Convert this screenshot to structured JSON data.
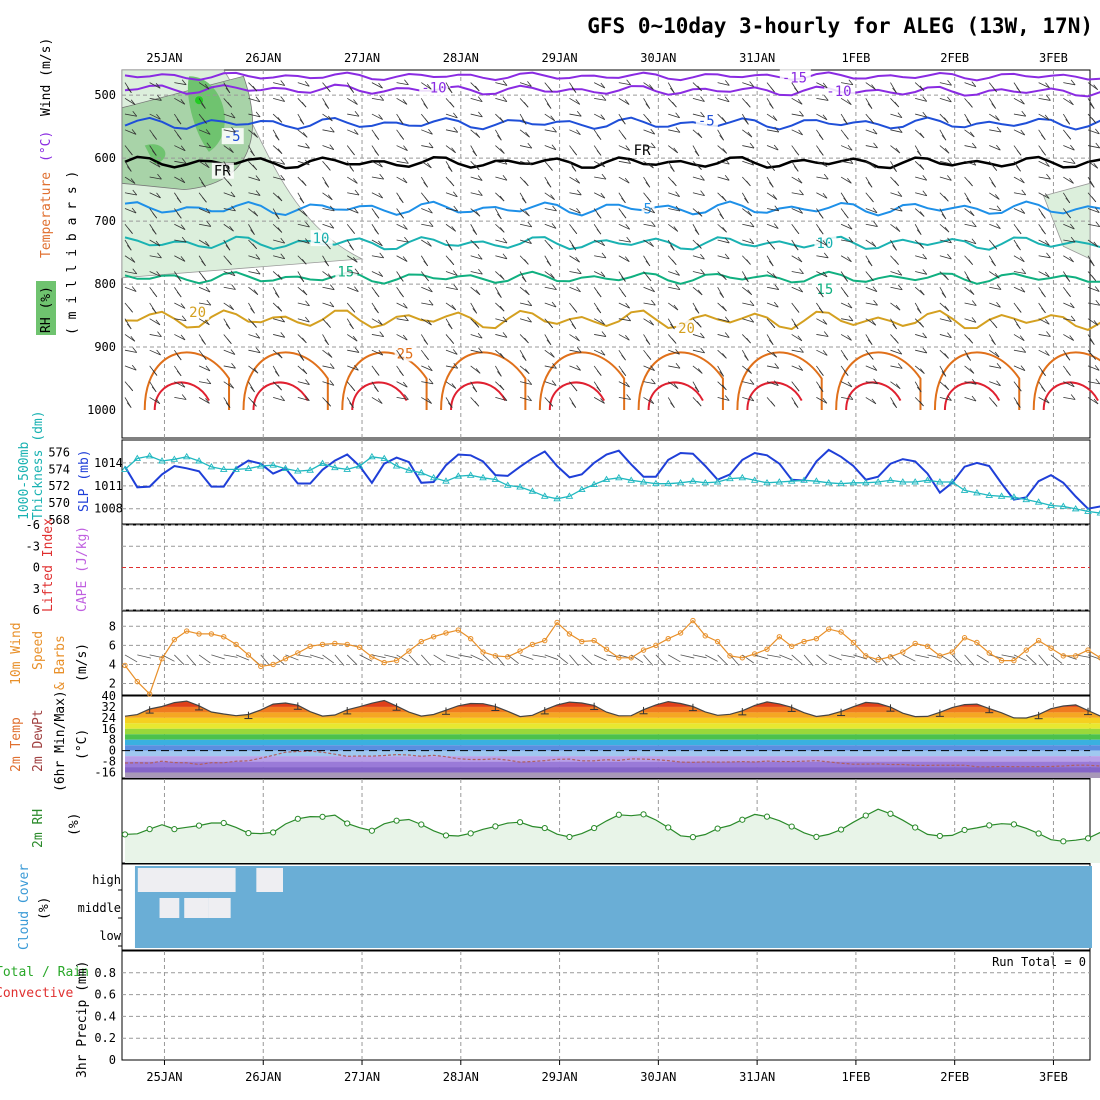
{
  "page": {
    "title": "GFS 0~10day 3-hourly for ALEG (13W, 17N)"
  },
  "colors": {
    "wind_barb": "#333333",
    "temp_cold": "#8a2be2",
    "temp_minus5": "#1f4fd8",
    "freezing": "#000000",
    "temp_5": "#1e90e8",
    "temp_10": "#1ab2b2",
    "temp_15": "#10b080",
    "temp_20": "#d4a020",
    "temp_25": "#e0701a",
    "temp_30": "#e02030",
    "rh_fill": "#6fc36f",
    "slp": "#1f3fd8",
    "thickness": "#20b8c0",
    "lifted_index": "#e03030",
    "cape": "#c060e0",
    "wind_speed": "#e8902a",
    "rh2m": "#2a8a2a",
    "cloud": "#6aaed6",
    "cloud_clear": "#eeeef2",
    "grid": "#999999"
  },
  "chart_data": {
    "x_axis": {
      "type": "date",
      "ticks": [
        "25JAN",
        "26JAN",
        "27JAN",
        "28JAN",
        "29JAN",
        "30JAN",
        "31JAN",
        "1FEB",
        "2FEB",
        "3FEB"
      ],
      "range_days": [
        -0.43,
        9.37
      ],
      "step_hours": 3
    },
    "charts": [
      {
        "id": "upper_air",
        "type": "contour",
        "ylabel_parts": [
          "RH (%)",
          "Temperature",
          " (°C)",
          "Wind",
          " (m/s)"
        ],
        "ylabel2": "( m i l l i b a r s )",
        "y_ticks": [
          "500",
          "600",
          "700",
          "800",
          "900",
          "1000"
        ],
        "ylim": [
          1000,
          460
        ],
        "contour_labels": [
          {
            "text": "-15",
            "t": 6.25,
            "p": 472
          },
          {
            "text": "-10",
            "t": 2.6,
            "p": 488
          },
          {
            "text": "-10",
            "t": 6.7,
            "p": 493
          },
          {
            "text": "-5",
            "t": 0.6,
            "p": 565
          },
          {
            "text": "-5",
            "t": 5.4,
            "p": 540
          },
          {
            "text": "FR",
            "t": 0.5,
            "p": 620
          },
          {
            "text": "FR",
            "t": 4.75,
            "p": 587
          },
          {
            "text": "5",
            "t": 4.85,
            "p": 680
          },
          {
            "text": "10",
            "t": 1.5,
            "p": 727
          },
          {
            "text": "10",
            "t": 6.6,
            "p": 735
          },
          {
            "text": "15",
            "t": 1.75,
            "p": 780
          },
          {
            "text": "15",
            "t": 6.6,
            "p": 808
          },
          {
            "text": "20",
            "t": 0.25,
            "p": 844
          },
          {
            "text": "20",
            "t": 5.2,
            "p": 870
          },
          {
            "text": "25",
            "t": 2.35,
            "p": 910
          }
        ],
        "temperature_levels_c": [
          -15,
          -10,
          -5,
          0,
          5,
          10,
          15,
          20,
          25,
          30
        ]
      },
      {
        "id": "slp_thickness",
        "type": "line",
        "ylabel_left": [
          "1000-500mb",
          "Thickness (dm)"
        ],
        "ylabel_right": "SLP (mb)",
        "y_ticks_left": [
          "576",
          "574",
          "572",
          "570",
          "568"
        ],
        "y_ticks_right": [
          "1014",
          "1011",
          "1008"
        ],
        "ylim_thickness": [
          567.5,
          577.5
        ],
        "ylim_slp": [
          1006,
          1017
        ],
        "series": [
          {
            "name": "SLP",
            "values": [
              1013.5,
              1010.8,
              1010.9,
              1012.5,
              1013.6,
              1013.3,
              1012.9,
              1010.9,
              1010.9,
              1013.3,
              1014.3,
              1013.9,
              1012.6,
              1013.3,
              1011.3,
              1011.3,
              1013.1,
              1014.3,
              1015.1,
              1013.6,
              1011.4,
              1013.9,
              1014.7,
              1014.1,
              1011.4,
              1011.5,
              1013.7,
              1015.1,
              1015.0,
              1014.2,
              1012.4,
              1012.3,
              1013.5,
              1014.6,
              1015.5,
              1013.6,
              1012.1,
              1012.5,
              1014.0,
              1015.1,
              1015.6,
              1013.8,
              1012.2,
              1012.2,
              1014.4,
              1015.3,
              1015.2,
              1013.6,
              1011.8,
              1012.5,
              1014.4,
              1015.3,
              1015.0,
              1013.9,
              1011.8,
              1011.7,
              1014.2,
              1015.7,
              1014.8,
              1013.6,
              1011.8,
              1012.2,
              1013.9,
              1014.5,
              1014.2,
              1012.6,
              1010.1,
              1011.4,
              1013.5,
              1014.0,
              1013.6,
              1011.3,
              1009.2,
              1009.5,
              1011.6,
              1012.4,
              1011.4,
              1009.6,
              1008.0,
              1008.3,
              1010.5,
              1011.4,
              1010.6,
              1008.6,
              1007.2,
              1007.6,
              1009.7,
              1010.2,
              1009.2,
              1007.7,
              1007.1,
              1008.1
            ]
          },
          {
            "name": "Thickness",
            "values": [
              574.0,
              575.3,
              575.6,
              575.0,
              575.2,
              575.5,
              575.0,
              574.3,
              574.0,
              574.0,
              574.1,
              574.4,
              574.5,
              574.1,
              573.8,
              573.9,
              574.7,
              574.2,
              574.0,
              574.4,
              575.5,
              575.3,
              574.4,
              573.9,
              573.6,
              573.0,
              572.6,
              573.2,
              573.3,
              573.0,
              572.8,
              572.1,
              571.9,
              571.4,
              570.8,
              570.5,
              570.8,
              571.6,
              572.2,
              572.8,
              573.0,
              572.7,
              572.5,
              572.3,
              572.3,
              572.4,
              572.6,
              572.4,
              572.5,
              572.9,
              573.0,
              572.7,
              572.4,
              572.5,
              572.6,
              572.7,
              572.6,
              572.4,
              572.3,
              572.4,
              572.4,
              572.5,
              572.7,
              572.5,
              572.5,
              572.7,
              572.5,
              572.5,
              571.5,
              571.2,
              570.9,
              570.8,
              570.7,
              570.4,
              570.1,
              569.7,
              569.6,
              569.3,
              569.0,
              568.8,
              568.6,
              568.2,
              568.0,
              567.8,
              568.1,
              568.7,
              569.4,
              570.2,
              570.4,
              570.5,
              570.4,
              570.0
            ]
          }
        ]
      },
      {
        "id": "stability",
        "type": "line",
        "ylabel_left": "Lifted Index",
        "ylabel_right": "CAPE (J/kg)",
        "y_ticks": [
          "-6",
          "-3",
          "0",
          "3",
          "6"
        ],
        "ylim": [
          6,
          -6
        ]
      },
      {
        "id": "wind10m",
        "type": "line",
        "ylabel_parts": [
          "10m Wind",
          "Speed",
          "(m/s)",
          "& Barbs"
        ],
        "y_ticks": [
          "2",
          "4",
          "6",
          "8"
        ],
        "ylim": [
          0.8,
          9.6
        ],
        "series": [
          {
            "name": "Speed",
            "values": [
              3.9,
              2.2,
              0.9,
              4.6,
              6.6,
              7.5,
              7.2,
              7.2,
              6.9,
              6.1,
              5.0,
              3.8,
              4.0,
              4.6,
              5.2,
              5.9,
              6.1,
              6.2,
              6.1,
              5.8,
              4.8,
              4.2,
              4.4,
              5.4,
              6.4,
              6.9,
              7.3,
              7.6,
              6.7,
              5.3,
              4.9,
              4.8,
              5.4,
              6.1,
              6.5,
              8.4,
              7.2,
              6.4,
              6.5,
              5.6,
              4.7,
              4.7,
              5.5,
              6.0,
              6.7,
              7.3,
              8.6,
              7.0,
              6.4,
              4.9,
              4.7,
              5.1,
              5.6,
              6.9,
              5.9,
              6.4,
              6.7,
              7.7,
              7.4,
              6.3,
              4.9,
              4.5,
              4.8,
              5.3,
              6.2,
              5.9,
              4.9,
              5.3,
              6.8,
              6.3,
              5.2,
              4.4,
              4.4,
              5.5,
              6.5,
              5.7,
              4.9,
              4.9,
              5.5,
              4.7,
              3.0,
              3.3,
              3.7,
              3.7,
              3.9,
              4.2,
              1.6,
              1.3,
              4.1,
              4.8,
              5.1,
              4.3
            ]
          }
        ]
      },
      {
        "id": "temp2m",
        "type": "area",
        "ylabel_parts": [
          "2m Temp",
          "2m DewPt",
          "(6hr Min/Max)",
          "(°C)"
        ],
        "y_ticks": [
          "40",
          "32",
          "24",
          "16",
          "8",
          "0",
          "-8",
          "-16"
        ],
        "ylim": [
          -20,
          40
        ],
        "series": [
          {
            "name": "Temp",
            "values": [
              25.2,
              26.4,
              30.5,
              32.3,
              35.2,
              36.3,
              32.8,
              28.3,
              26.8,
              25.6,
              26.5,
              29.8,
              34.1,
              34.9,
              33.3,
              28.5,
              25.3,
              26.1,
              29.9,
              32.2,
              34.7,
              36.7,
              32.6,
              28.2,
              25.3,
              26.5,
              29.6,
              32.8,
              34.5,
              34.4,
              32.4,
              28.8,
              24.9,
              25.9,
              29.9,
              33.4,
              35.5,
              34.9,
              33.1,
              28.2,
              25.5,
              25.6,
              30.0,
              33.5,
              35.9,
              34.5,
              32.3,
              28.4,
              25.9,
              26.6,
              29.2,
              33.1,
              35.7,
              34.2,
              31.7,
              27.8,
              25.0,
              26.1,
              28.7,
              32.2,
              35.3,
              34.6,
              31.9,
              27.4,
              24.9,
              25.1,
              28.1,
              31.5,
              33.7,
              34.1,
              30.8,
              27.7,
              24.0,
              23.9,
              26.4,
              30.7,
              32.7,
              33.5,
              29.4,
              25.3,
              22.8,
              24.5,
              25.8,
              29.5,
              33.8,
              33.7,
              30.7,
              26.4,
              24.0,
              23.9,
              23.7,
              22.6
            ]
          },
          {
            "name": "DewPt",
            "values": [
              -9.0,
              -8.9,
              -9.1,
              -7.7,
              -8.7,
              -8.9,
              -10.1,
              -8.8,
              -8.9,
              -7.7,
              -7.4,
              -5.5,
              -3.4,
              -1.1,
              -0.6,
              -0.4,
              -1.1,
              -2.6,
              -4.1,
              -3.9,
              -4.0,
              -3.5,
              -2.9,
              -3.2,
              -4.1,
              -3.4,
              -4.4,
              -5.9,
              -6.5,
              -6.5,
              -6.0,
              -6.9,
              -8.4,
              -7.9,
              -7.3,
              -6.3,
              -6.2,
              -7.4,
              -7.4,
              -6.6,
              -7.1,
              -6.0,
              -6.2,
              -6.6,
              -7.3,
              -8.4,
              -8.5,
              -8.2,
              -8.4,
              -8.3,
              -8.0,
              -8.3,
              -7.6,
              -7.9,
              -8.0,
              -7.7,
              -7.3,
              -8.2,
              -9.2,
              -9.9,
              -9.8,
              -9.7,
              -10.1,
              -10.1,
              -10.8,
              -10.8,
              -10.6,
              -10.7,
              -10.6,
              -11.8,
              -11.8,
              -11.6,
              -11.7,
              -11.7,
              -11.7,
              -11.6,
              -11.2,
              -10.6,
              -10.6,
              -11.2,
              -11.1,
              -11.0,
              -11.0,
              -10.6,
              -10.4,
              -10.6,
              -11.2,
              -11.3,
              -11.5,
              -10.5,
              -9.5,
              -9.4
            ]
          }
        ]
      },
      {
        "id": "rh2m",
        "type": "line",
        "ylabel_parts": [
          "2m RH",
          "(%)"
        ],
        "y_ticks": [],
        "ylim": [
          0,
          100
        ],
        "series": [
          {
            "name": "RH",
            "values": [
              34.0,
              34.8,
              40.3,
              45.6,
              40.3,
              42.5,
              44.5,
              47.6,
              47.6,
              42.4,
              35.6,
              35.0,
              36.4,
              46.4,
              52.6,
              55.2,
              55.0,
              57.0,
              47.1,
              42.0,
              38.4,
              46.7,
              50.4,
              51.8,
              45.8,
              38.3,
              32.8,
              32.1,
              35.3,
              40.1,
              43.6,
              47.5,
              48.6,
              43.5,
              41.6,
              34.3,
              31.0,
              35.0,
              41.6,
              50.1,
              57.4,
              56.3,
              57.9,
              51.2,
              42.3,
              32.4,
              30.8,
              33.9,
              41.0,
              44.6,
              51.5,
              57.9,
              55.2,
              50.4,
              43.4,
              35.9,
              31.1,
              34.0,
              39.8,
              48.6,
              56.5,
              64.0,
              58.6,
              50.9,
              42.3,
              34.1,
              32.2,
              32.9,
              39.3,
              41.8,
              44.8,
              46.8,
              46.0,
              41.3,
              35.1,
              27.7,
              25.8,
              27.1,
              29.4,
              36.4,
              40.2,
              43.6,
              46.8,
              44.7,
              40.1,
              31.5,
              32.6,
              31.1,
              41.6,
              44.7,
              44.2,
              47.1
            ]
          }
        ]
      },
      {
        "id": "cloud",
        "type": "heatmap",
        "ylabel_parts": [
          "Cloud Cover",
          "(%)"
        ],
        "rows": [
          "high",
          "middle",
          "low"
        ],
        "clear_blocks": [
          {
            "row": "high",
            "from_day": -0.27,
            "to_day": 0.43
          },
          {
            "row": "high",
            "from_day": 0.3,
            "to_day": 0.72
          },
          {
            "row": "high",
            "from_day": 0.93,
            "to_day": 1.2
          },
          {
            "row": "middle",
            "from_day": -0.05,
            "to_day": 0.15
          },
          {
            "row": "middle",
            "from_day": 0.2,
            "to_day": 0.45
          },
          {
            "row": "middle",
            "from_day": 0.45,
            "to_day": 0.67
          }
        ]
      },
      {
        "id": "precip",
        "type": "bar",
        "ylabel_parts": [
          "Total / Rain",
          "Convective",
          "3hr Precip (mm)"
        ],
        "y_ticks": [
          "0",
          "0.2",
          "0.4",
          "0.6",
          "0.8"
        ],
        "ylim": [
          0,
          1.0
        ],
        "annotation": "Run Total = 0",
        "values": []
      }
    ]
  }
}
